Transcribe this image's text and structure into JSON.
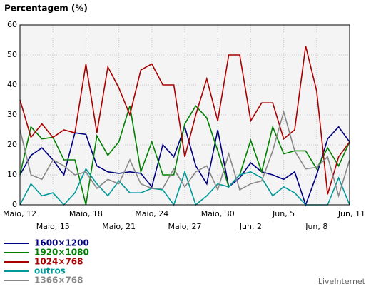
{
  "chart_data": {
    "type": "line",
    "title": "Percentagem (%)",
    "watermark": "LiveInternet",
    "categories": [
      "Maio, 12",
      null,
      null,
      "Maio, 15",
      null,
      null,
      "Maio, 18",
      null,
      null,
      "Maio, 21",
      null,
      null,
      "Maio, 24",
      null,
      null,
      "Maio, 27",
      null,
      null,
      "Maio, 30",
      null,
      null,
      "Jun, 2",
      null,
      null,
      "Jun, 5",
      null,
      null,
      "Jun, 8",
      null,
      null,
      "Jun, 11"
    ],
    "ylim": [
      0,
      60
    ],
    "yticks": [
      0,
      10,
      20,
      30,
      40,
      50,
      60
    ],
    "grid": true,
    "series": [
      {
        "name": "1600×1200",
        "color": "#000080",
        "values": [
          10,
          16.5,
          19,
          15,
          10,
          24,
          23.5,
          13,
          11,
          10.5,
          11,
          10.5,
          6,
          20,
          16,
          26,
          13,
          7,
          25,
          6,
          9,
          14,
          11,
          10,
          8.5,
          11,
          0,
          10,
          22,
          26,
          21
        ]
      },
      {
        "name": "1920×1080",
        "color": "#008000",
        "values": [
          10,
          26,
          22,
          22.5,
          15,
          15,
          0,
          23,
          16.5,
          21,
          33,
          11,
          21,
          10,
          10,
          27,
          33,
          29,
          18,
          6,
          10,
          21.5,
          11,
          26,
          17,
          18,
          18,
          12,
          19,
          13,
          21
        ]
      },
      {
        "name": "1024×768",
        "color": "#aa0000",
        "values": [
          35,
          22.5,
          27,
          22.5,
          25,
          24,
          47,
          24,
          46,
          39,
          30,
          45,
          47,
          40,
          40,
          16,
          30,
          42,
          28,
          50,
          50,
          28,
          34,
          34,
          22,
          25,
          53,
          38,
          3.5,
          16,
          21
        ]
      },
      {
        "name": "outros",
        "color": "#009999",
        "values": [
          0,
          7,
          3,
          4,
          0,
          4,
          12,
          7,
          3,
          8,
          4,
          4,
          5.5,
          5,
          0,
          11,
          0,
          3,
          7,
          6,
          10,
          11,
          9,
          3,
          6,
          4,
          0,
          0,
          0,
          9,
          0
        ]
      },
      {
        "name": "1366×768",
        "color": "#888888",
        "values": [
          25,
          10,
          8.5,
          15,
          13,
          10,
          11,
          5.5,
          8.5,
          7,
          15,
          7,
          5.5,
          5.5,
          12,
          6,
          11,
          13,
          5,
          17,
          5,
          7,
          8,
          18,
          31,
          18,
          12,
          12.5,
          16,
          3,
          15
        ]
      }
    ]
  }
}
